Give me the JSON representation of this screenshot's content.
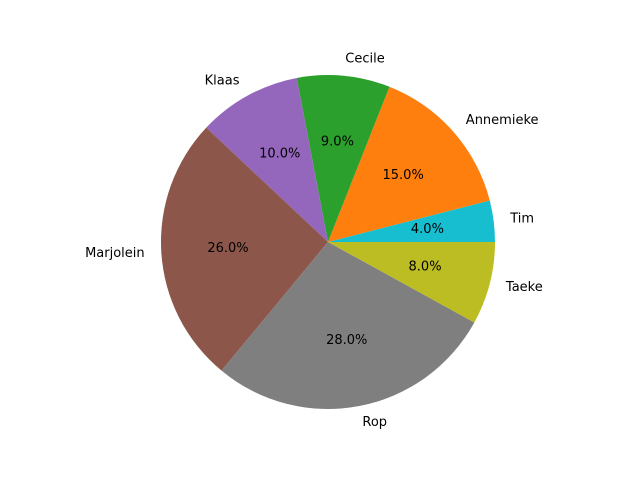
{
  "chart_data": {
    "type": "pie",
    "categories": [
      "Tim",
      "Annemieke",
      "Cecile",
      "Klaas",
      "Marjolein",
      "Rop",
      "Taeke"
    ],
    "values": [
      4.0,
      15.0,
      9.0,
      10.0,
      26.0,
      28.0,
      8.0
    ],
    "percent_labels": [
      "4.0%",
      "15.0%",
      "9.0%",
      "10.0%",
      "26.0%",
      "28.0%",
      "8.0%"
    ],
    "colors": [
      "#17becf",
      "#ff7f0e",
      "#2ca02c",
      "#9467bd",
      "#8c564b",
      "#7f7f7f",
      "#bcbd22"
    ],
    "start_angle_deg": 0,
    "direction": "counterclockwise",
    "title": ""
  }
}
